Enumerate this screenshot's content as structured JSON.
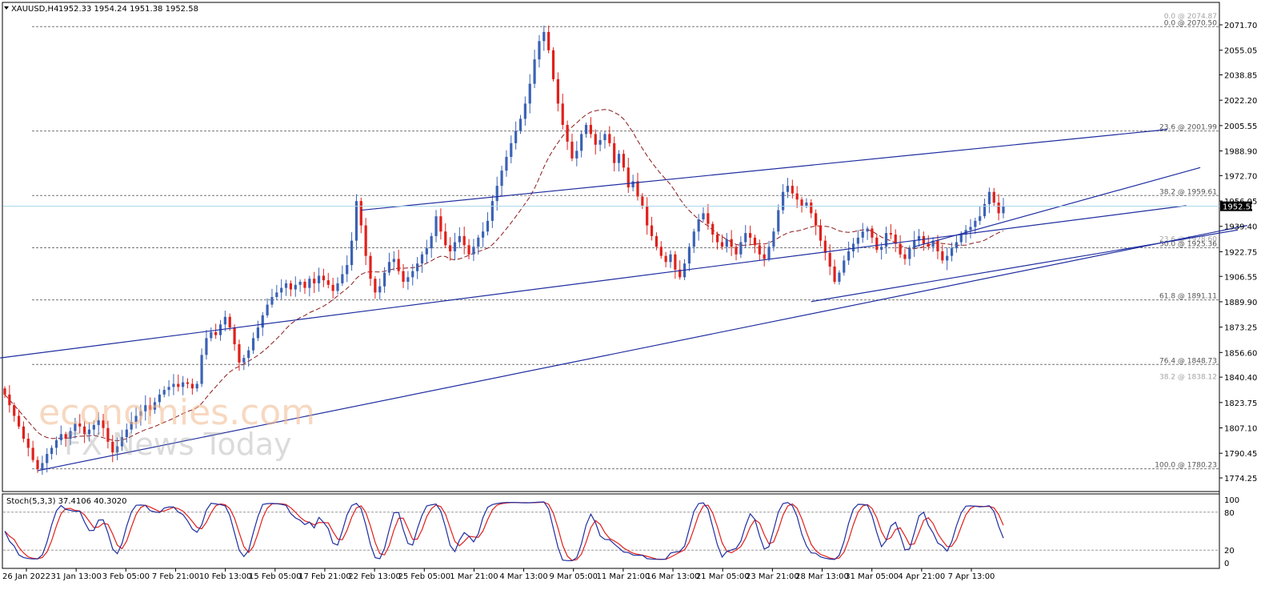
{
  "header": {
    "symbol": "XAUUSD,H4",
    "ohlc": "1952.33 1954.24 1951.38 1952.58"
  },
  "price_axis": {
    "ticks": [
      "2071.70",
      "2055.05",
      "2038.85",
      "2022.20",
      "2005.55",
      "1988.90",
      "1972.70",
      "1956.05",
      "1939.40",
      "1922.75",
      "1906.55",
      "1889.90",
      "1873.25",
      "1856.60",
      "1840.40",
      "1823.75",
      "1807.10",
      "1790.45",
      "1774.25"
    ],
    "current_price": "1952.58",
    "current_price_color": "#000000"
  },
  "fib_levels": [
    {
      "label": "0.0 @ 2074.87",
      "value": 2074.87,
      "style": "faint"
    },
    {
      "label": "0.0 @ 2070.50",
      "value": 2070.5,
      "style": "dashed"
    },
    {
      "label": "23.6 @ 2001.99",
      "value": 2001.99,
      "style": "dashed"
    },
    {
      "label": "38.2 @ 1959.61",
      "value": 1959.61,
      "style": "dashed"
    },
    {
      "label": "23.6 @ 1928.60",
      "value": 1928.6,
      "style": "faint"
    },
    {
      "label": "50.0 @ 1925.36",
      "value": 1925.36,
      "style": "dashed"
    },
    {
      "label": "61.8 @ 1891.11",
      "value": 1891.11,
      "style": "dashed"
    },
    {
      "label": "76.4 @ 1848.73",
      "value": 1848.73,
      "style": "dashed"
    },
    {
      "label": "38.2 @ 1838.12",
      "value": 1838.12,
      "style": "faint"
    },
    {
      "label": "100.0 @ 1780.23",
      "value": 1780.23,
      "style": "dashed"
    }
  ],
  "time_axis": [
    "26 Jan 2022",
    "31 Jan 13:00",
    "3 Feb 05:00",
    "7 Feb 21:00",
    "10 Feb 13:00",
    "15 Feb 05:00",
    "17 Feb 21:00",
    "22 Feb 13:00",
    "25 Feb 05:00",
    "1 Mar 21:00",
    "4 Mar 13:00",
    "9 Mar 05:00",
    "11 Mar 21:00",
    "16 Mar 13:00",
    "21 Mar 05:00",
    "23 Mar 21:00",
    "28 Mar 13:00",
    "31 Mar 05:00",
    "4 Apr 21:00",
    "7 Apr 13:00"
  ],
  "stochastic": {
    "label": "Stoch(5,3,3) 37.4106 40.3020",
    "ticks": [
      "100",
      "80",
      "20",
      "0"
    ]
  },
  "watermark": {
    "line1": "economies.com",
    "line2": "FX News Today"
  },
  "colors": {
    "bull": "#3b62b5",
    "bear": "#e0201b",
    "trendline": "#1f2ea0",
    "ma": "#8b1a1a",
    "stoch_main": "#1f2ea0",
    "stoch_signal": "#e0201b"
  },
  "chart_data": {
    "type": "candlestick",
    "title": "XAUUSD,H4",
    "ylim": [
      1774.25,
      2071.7
    ],
    "close_series": [
      1829,
      1822,
      1815,
      1808,
      1800,
      1794,
      1786,
      1780,
      1784,
      1790,
      1794,
      1799,
      1803,
      1800,
      1805,
      1810,
      1808,
      1803,
      1806,
      1809,
      1812,
      1807,
      1798,
      1791,
      1795,
      1801,
      1806,
      1811,
      1815,
      1818,
      1822,
      1819,
      1824,
      1829,
      1832,
      1834,
      1836,
      1834,
      1837,
      1836,
      1833,
      1836,
      1855,
      1866,
      1870,
      1868,
      1875,
      1880,
      1873,
      1862,
      1850,
      1853,
      1858,
      1866,
      1873,
      1881,
      1888,
      1893,
      1896,
      1899,
      1902,
      1898,
      1901,
      1903,
      1899,
      1905,
      1902,
      1907,
      1904,
      1901,
      1897,
      1902,
      1908,
      1914,
      1930,
      1956,
      1940,
      1920,
      1905,
      1896,
      1900,
      1909,
      1916,
      1918,
      1910,
      1903,
      1906,
      1910,
      1915,
      1921,
      1925,
      1933,
      1946,
      1936,
      1927,
      1923,
      1929,
      1933,
      1927,
      1921,
      1926,
      1932,
      1936,
      1943,
      1956,
      1966,
      1976,
      1985,
      1994,
      2002,
      2010,
      2020,
      2033,
      2049,
      2061,
      2067,
      2055,
      2036,
      2020,
      2006,
      1995,
      1984,
      1989,
      2000,
      2006,
      2000,
      1993,
      1996,
      2000,
      1994,
      1981,
      1987,
      1978,
      1965,
      1969,
      1959,
      1953,
      1940,
      1933,
      1926,
      1920,
      1916,
      1921,
      1911,
      1906,
      1915,
      1926,
      1936,
      1944,
      1948,
      1941,
      1934,
      1929,
      1926,
      1931,
      1926,
      1921,
      1929,
      1935,
      1932,
      1927,
      1921,
      1918,
      1926,
      1936,
      1950,
      1962,
      1966,
      1961,
      1957,
      1953,
      1955,
      1948,
      1940,
      1930,
      1922,
      1913,
      1903,
      1909,
      1917,
      1923,
      1928,
      1932,
      1936,
      1938,
      1932,
      1924,
      1926,
      1935,
      1934,
      1928,
      1921,
      1918,
      1925,
      1930,
      1933,
      1928,
      1926,
      1930,
      1923,
      1917,
      1920,
      1925,
      1929,
      1934,
      1937,
      1939,
      1943,
      1946,
      1954,
      1962,
      1955,
      1948,
      1952.58
    ],
    "moving_average": "dashed red",
    "trendlines": 5,
    "indicator": "Stoch(5,3,3)",
    "stoch_main_last": 37.4106,
    "stoch_signal_last": 40.302
  }
}
